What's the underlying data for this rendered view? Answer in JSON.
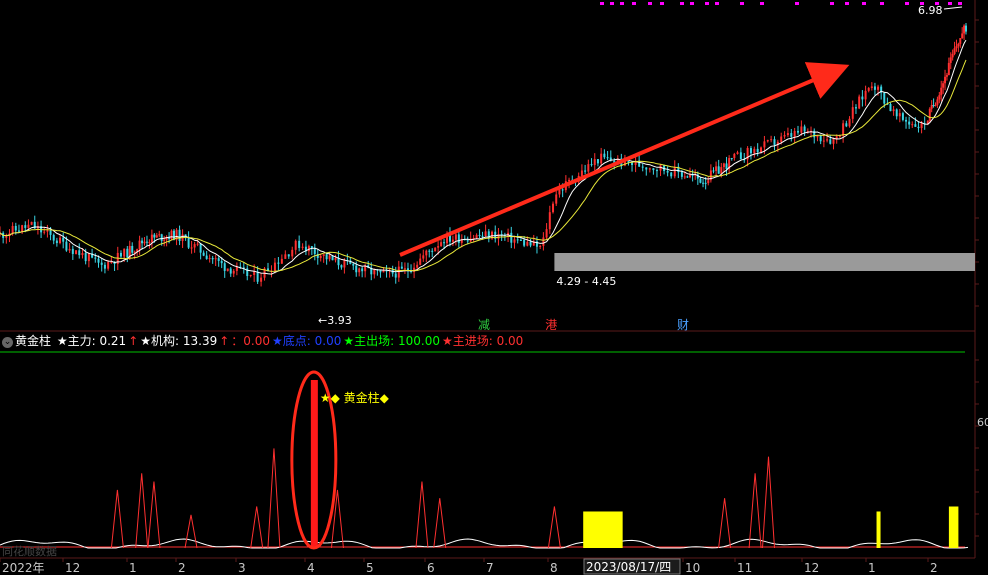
{
  "colors": {
    "background": "#000000",
    "up": "#ff3030",
    "down": "#3ad6e6",
    "ma_fast": "#ffffff",
    "ma_slow": "#e8e83a",
    "accent_magenta": "#ff00ff",
    "zone_gray": "#9a9a9a",
    "arrow": "#ff2a1a",
    "panel_line": "#00c000",
    "grid": "#3a1010",
    "axis_text": "#c8c8c8",
    "gold": "#ffff00"
  },
  "price_panel": {
    "high_label": "6.98",
    "low_label": "3.93",
    "zone_label": "4.29 - 4.45",
    "zone_range": [
      4.29,
      4.45
    ],
    "markers": [
      {
        "text": "减",
        "color": "#2ecc40",
        "month_pos": 8.0
      },
      {
        "text": "港",
        "color": "#ff3030",
        "month_pos": 9.05
      },
      {
        "text": "财",
        "color": "#4aa0ff",
        "month_pos": 11.0
      }
    ]
  },
  "legend": {
    "collapse_icon": "⌄",
    "name": "黄金柱",
    "items": [
      {
        "label": "★主力: 0.21",
        "color": "#ffffff"
      },
      {
        "label": "↑",
        "color": "#ff3030"
      },
      {
        "label": "★机构: 13.39",
        "color": "#ffffff"
      },
      {
        "label": "↑",
        "color": "#ff3030"
      },
      {
        "label": "：0.00",
        "color": "#ff3030"
      },
      {
        "label": "★底点: 0.00",
        "color": "#2040ff"
      },
      {
        "label": "★主出场: 100.00",
        "color": "#00ff00"
      },
      {
        "label": "★主进场: 0.00",
        "color": "#ff3030"
      }
    ]
  },
  "indicator_panel": {
    "annotation": "★◆ 黄金柱◆",
    "axis_label": "60",
    "watermark": "同花顺数据"
  },
  "x_axis": {
    "labels": [
      {
        "text": "2022年",
        "pos": 0.0
      },
      {
        "text": "12",
        "pos": 1.0
      },
      {
        "text": "1",
        "pos": 2.0
      },
      {
        "text": "2",
        "pos": 3.0
      },
      {
        "text": "3",
        "pos": 4.0
      },
      {
        "text": "4",
        "pos": 5.0
      },
      {
        "text": "5",
        "pos": 6.0
      },
      {
        "text": "6",
        "pos": 7.0
      },
      {
        "text": "7",
        "pos": 8.0
      },
      {
        "text": "8",
        "pos": 9.0
      },
      {
        "text": "2023/08/17/四",
        "pos": 10.0,
        "highlight": true
      },
      {
        "text": "10",
        "pos": 11.0
      },
      {
        "text": "11",
        "pos": 12.0
      },
      {
        "text": "12",
        "pos": 13.0
      },
      {
        "text": "1",
        "pos": 14.0
      },
      {
        "text": "2",
        "pos": 15.0
      }
    ]
  },
  "chart_data": {
    "type": "candlestick",
    "ylim": [
      3.5,
      7.0
    ],
    "high": 6.98,
    "low": 3.93,
    "price_path": [
      [
        0.0,
        4.45
      ],
      [
        0.5,
        4.55
      ],
      [
        1.0,
        4.35
      ],
      [
        1.6,
        4.1
      ],
      [
        2.4,
        4.4
      ],
      [
        3.0,
        4.45
      ],
      [
        3.8,
        4.1
      ],
      [
        4.3,
        3.97
      ],
      [
        4.9,
        4.35
      ],
      [
        5.5,
        4.15
      ],
      [
        6.3,
        4.0
      ],
      [
        6.7,
        4.05
      ],
      [
        7.3,
        4.4
      ],
      [
        8.2,
        4.45
      ],
      [
        8.9,
        4.3
      ],
      [
        9.1,
        4.9
      ],
      [
        9.8,
        5.3
      ],
      [
        10.6,
        5.2
      ],
      [
        11.4,
        5.05
      ],
      [
        12.0,
        5.3
      ],
      [
        13.0,
        5.6
      ],
      [
        13.5,
        5.5
      ],
      [
        14.1,
        6.15
      ],
      [
        14.5,
        5.75
      ],
      [
        14.9,
        5.65
      ],
      [
        15.4,
        6.15
      ],
      [
        15.8,
        6.6
      ],
      [
        16.0,
        6.75
      ]
    ],
    "golden_column": {
      "month_pos": 5.15,
      "value": 100
    },
    "indicator_spikes": [
      [
        1.85,
        35
      ],
      [
        2.3,
        45
      ],
      [
        2.55,
        40
      ],
      [
        3.25,
        20
      ],
      [
        4.3,
        25
      ],
      [
        4.55,
        60
      ],
      [
        5.55,
        35
      ],
      [
        6.95,
        40
      ],
      [
        7.25,
        30
      ],
      [
        9.1,
        25
      ],
      [
        11.8,
        30
      ],
      [
        12.3,
        45
      ],
      [
        12.5,
        55
      ]
    ],
    "gold_bars": [
      {
        "from": 9.55,
        "to": 10.15,
        "value": 22
      },
      {
        "from": 14.17,
        "to": 14.22,
        "value": 22
      },
      {
        "from": 15.55,
        "to": 15.8,
        "value": 25
      }
    ]
  }
}
